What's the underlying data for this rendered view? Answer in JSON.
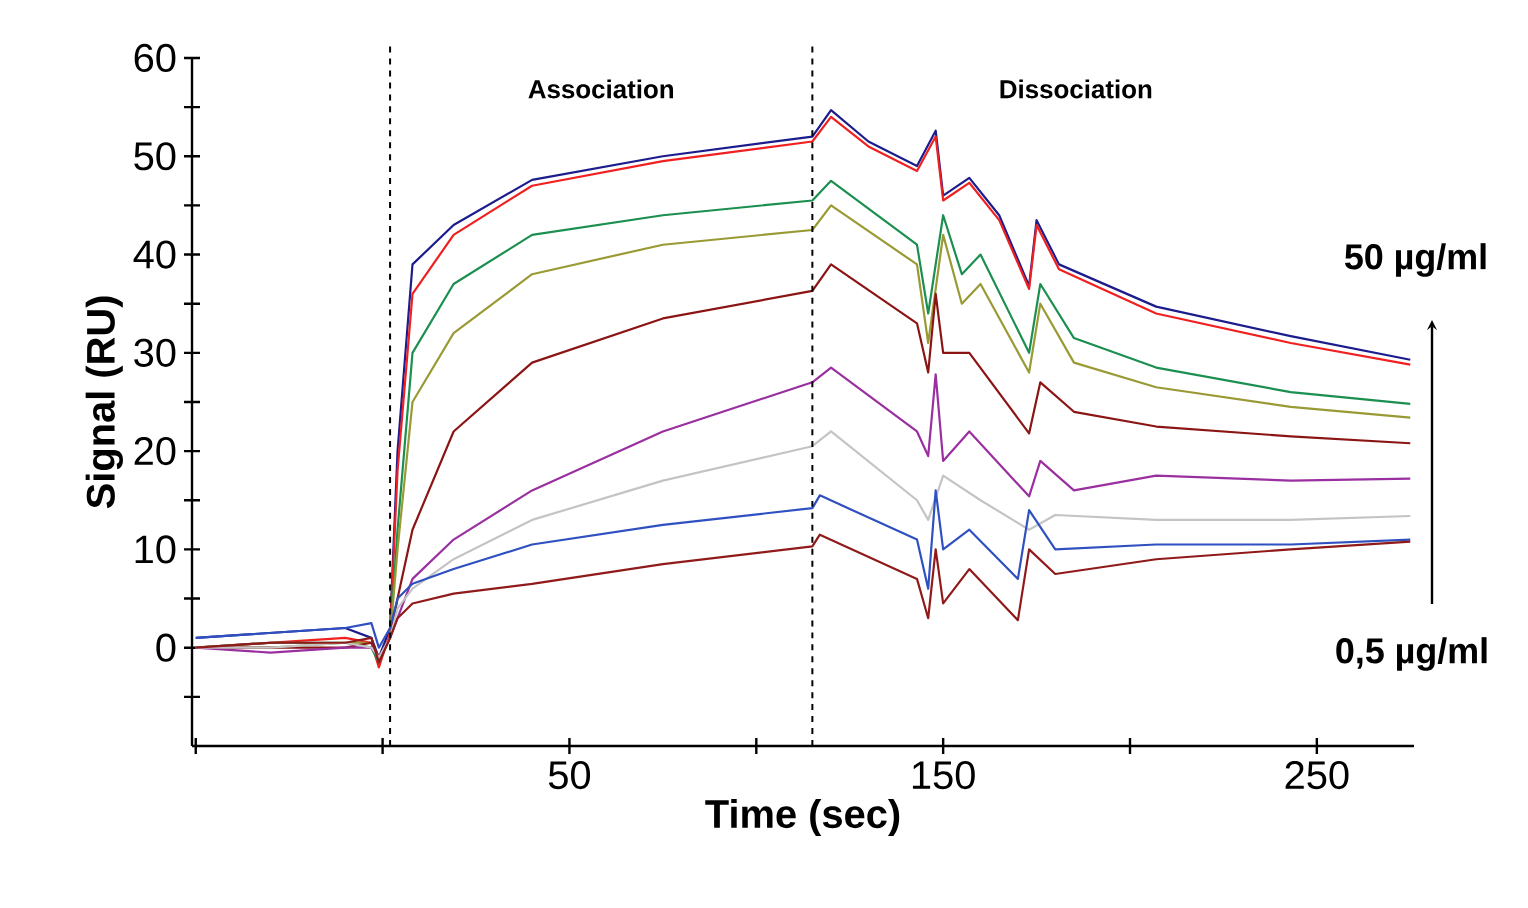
{
  "chart_data": {
    "type": "line",
    "xlabel": "Time (sec)",
    "ylabel": "Signal (RU)",
    "xlim": [
      -51,
      276
    ],
    "ylim": [
      -10,
      60
    ],
    "xticks": [
      {
        "value": -50,
        "label": null
      },
      {
        "value": 0,
        "label": null
      },
      50,
      {
        "value": 100,
        "label": null
      },
      150,
      {
        "value": 200,
        "label": null
      },
      250
    ],
    "yticks": [
      {
        "value": -5,
        "label": null
      },
      0,
      {
        "value": 5,
        "label": null
      },
      10,
      {
        "value": 15,
        "label": null
      },
      20,
      {
        "value": 25,
        "label": null
      },
      30,
      {
        "value": 35,
        "label": null
      },
      40,
      {
        "value": 45,
        "label": null
      },
      50,
      {
        "value": 55,
        "label": null
      },
      60
    ],
    "marker": "none",
    "line_style": "solid",
    "ref_lines": [
      {
        "axis": "x",
        "value": 2,
        "color": "#000000",
        "line_style": "dashed"
      },
      {
        "axis": "x",
        "value": 115,
        "color": "#000000",
        "line_style": "dashed"
      }
    ],
    "annotations": [
      "Association",
      "Dissociation",
      "50 µg/ml",
      "0,5 µg/ml"
    ],
    "series": [
      {
        "color": "#1c1c8c",
        "x": [
          -50,
          -30,
          -10,
          -3,
          -1,
          2,
          4,
          8,
          19,
          40,
          75,
          115,
          120,
          130,
          143,
          148,
          150,
          157,
          165,
          173,
          175,
          181,
          207,
          243,
          275
        ],
        "values": [
          1,
          1.5,
          2,
          1,
          -1,
          2,
          20,
          39,
          43,
          47.6,
          50,
          52,
          54.7,
          51.5,
          49,
          52.6,
          46,
          47.8,
          44,
          36.8,
          43.5,
          39,
          34.7,
          31.7,
          29.3
        ]
      },
      {
        "color": "#f02020",
        "x": [
          -50,
          -30,
          -10,
          -3,
          -1,
          2,
          4,
          8,
          19,
          40,
          75,
          115,
          120,
          130,
          143,
          148,
          150,
          157,
          165,
          173,
          175,
          181,
          207,
          243,
          275
        ],
        "values": [
          0,
          0.5,
          1,
          0.5,
          -2,
          1.5,
          18,
          36,
          42,
          47,
          49.5,
          51.5,
          54,
          51,
          48.5,
          52,
          45.5,
          47.3,
          43.5,
          36.5,
          43,
          38.5,
          34,
          31,
          28.8
        ]
      },
      {
        "color": "#1b8f4f",
        "x": [
          -50,
          -30,
          -10,
          -3,
          -1,
          2,
          4,
          8,
          19,
          40,
          75,
          115,
          120,
          143,
          146,
          150,
          155,
          160,
          173,
          176,
          185,
          207,
          243,
          275
        ],
        "values": [
          0,
          0.5,
          0.5,
          0,
          -1.5,
          1,
          12,
          30,
          37,
          42,
          44,
          45.5,
          47.5,
          41,
          34,
          44,
          38,
          40,
          30,
          37,
          31.5,
          28.5,
          26,
          24.8
        ]
      },
      {
        "color": "#9a9a35",
        "x": [
          -50,
          -30,
          -10,
          -3,
          -1,
          2,
          4,
          8,
          19,
          40,
          75,
          115,
          120,
          143,
          146,
          150,
          155,
          160,
          173,
          176,
          185,
          207,
          243,
          275
        ],
        "values": [
          0,
          0,
          0.5,
          0.5,
          -1,
          1,
          10,
          25,
          32,
          38,
          41,
          42.5,
          45,
          39,
          31,
          42,
          35,
          37,
          28,
          35,
          29,
          26.5,
          24.5,
          23.4
        ]
      },
      {
        "color": "#8b1515",
        "x": [
          -50,
          -30,
          -10,
          -3,
          -1,
          2,
          4,
          8,
          19,
          40,
          75,
          115,
          120,
          143,
          146,
          148,
          150,
          157,
          173,
          176,
          185,
          207,
          243,
          275
        ],
        "values": [
          0,
          0,
          0,
          0.5,
          -1,
          1,
          5,
          12,
          22,
          29,
          33.5,
          36.3,
          39,
          33,
          28,
          36,
          30,
          30,
          21.8,
          27,
          24,
          22.5,
          21.5,
          20.8
        ]
      },
      {
        "color": "#9a2fa0",
        "x": [
          -50,
          -30,
          -10,
          -3,
          -1,
          2,
          4,
          8,
          19,
          40,
          75,
          115,
          120,
          143,
          146,
          148,
          150,
          157,
          173,
          176,
          185,
          207,
          243,
          275
        ],
        "values": [
          0,
          -0.5,
          0,
          0,
          -1,
          1,
          3,
          7,
          11,
          16,
          22,
          27,
          28.5,
          22,
          19.5,
          27.8,
          19,
          22,
          15.4,
          19,
          16,
          17.5,
          17,
          17.2
        ]
      },
      {
        "color": "#c4c4c4",
        "x": [
          -50,
          -30,
          -10,
          -3,
          -1,
          2,
          4,
          8,
          19,
          40,
          75,
          115,
          120,
          143,
          146,
          150,
          160,
          173,
          180,
          207,
          243,
          275
        ],
        "values": [
          0,
          0,
          0.5,
          0,
          -1,
          1,
          4,
          6,
          9,
          13,
          17,
          20.5,
          22,
          15,
          13,
          17.5,
          15,
          12,
          13.5,
          13,
          13,
          13.4
        ]
      },
      {
        "color": "#2f50c0",
        "x": [
          -50,
          -30,
          -10,
          -3,
          -1,
          2,
          4,
          8,
          19,
          40,
          75,
          115,
          117,
          143,
          146,
          148,
          150,
          157,
          170,
          173,
          180,
          207,
          243,
          275
        ],
        "values": [
          1,
          1.5,
          2,
          2.5,
          0,
          2,
          5,
          6.5,
          8,
          10.5,
          12.5,
          14.2,
          15.5,
          11,
          6,
          16,
          10,
          12,
          7,
          14,
          10,
          10.5,
          10.5,
          11
        ]
      },
      {
        "color": "#901a1a",
        "x": [
          -50,
          -30,
          -10,
          -3,
          -1,
          2,
          4,
          8,
          19,
          40,
          75,
          115,
          117,
          143,
          146,
          148,
          150,
          157,
          170,
          173,
          180,
          207,
          243,
          275
        ],
        "values": [
          0,
          0.5,
          0.5,
          1,
          -1.5,
          1,
          3,
          4.5,
          5.5,
          6.5,
          8.5,
          10.3,
          11.5,
          7,
          3,
          10,
          4.5,
          8,
          2.8,
          10,
          7.5,
          9,
          10,
          10.8
        ]
      }
    ]
  }
}
